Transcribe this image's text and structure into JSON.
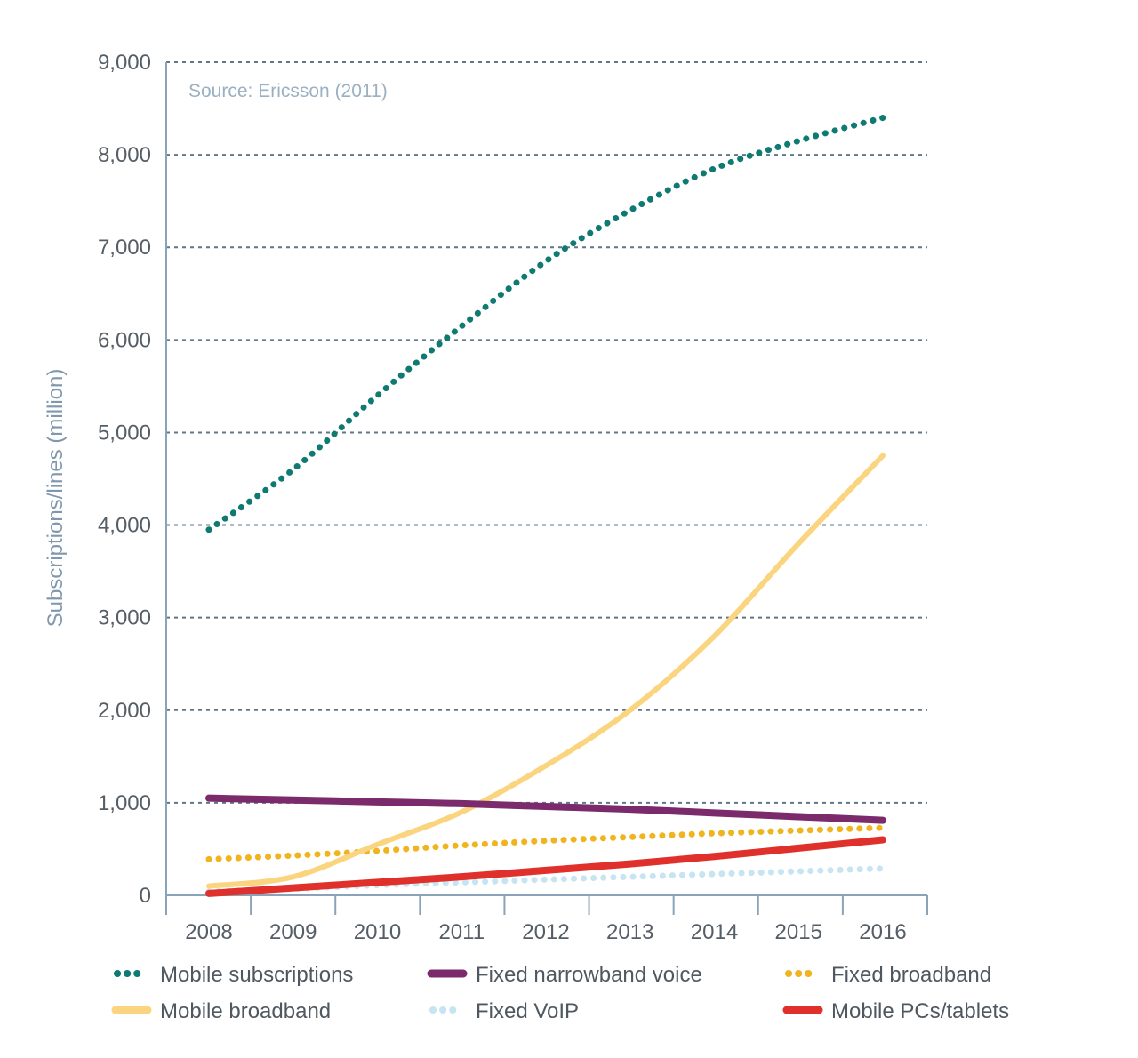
{
  "chart_data": {
    "type": "line",
    "source": "Source: Ericsson (2011)",
    "ylabel": "Subscriptions/lines (million)",
    "xlabel": "",
    "ylim": [
      0,
      9000
    ],
    "yticks": [
      0,
      1000,
      2000,
      3000,
      4000,
      5000,
      6000,
      7000,
      8000,
      9000
    ],
    "ytick_labels": [
      "0",
      "1,000",
      "2,000",
      "3,000",
      "4,000",
      "5,000",
      "6,000",
      "7,000",
      "8,000",
      "9,000"
    ],
    "categories": [
      "2008",
      "2009",
      "2010",
      "2011",
      "2012",
      "2013",
      "2014",
      "2015",
      "2016"
    ],
    "grid": "horizontal dashed",
    "legend_position": "bottom",
    "series": [
      {
        "name": "Mobile subscriptions",
        "color": "#0e7a72",
        "style": "dotted",
        "values": [
          3950,
          4600,
          5400,
          6150,
          6850,
          7400,
          7850,
          8150,
          8400
        ]
      },
      {
        "name": "Fixed narrowband voice",
        "color": "#7b2a6b",
        "style": "solid",
        "values": [
          1050,
          1030,
          1010,
          990,
          960,
          930,
          890,
          850,
          810
        ]
      },
      {
        "name": "Fixed broadband",
        "color": "#f0b41e",
        "style": "dotted",
        "values": [
          390,
          430,
          480,
          540,
          590,
          630,
          670,
          700,
          730
        ]
      },
      {
        "name": "Mobile broadband",
        "color": "#fbd47f",
        "style": "solid",
        "values": [
          100,
          200,
          550,
          900,
          1400,
          2000,
          2800,
          3800,
          4750
        ]
      },
      {
        "name": "Fixed VoIP",
        "color": "#c7e4f2",
        "style": "dotted",
        "values": [
          40,
          70,
          110,
          140,
          170,
          200,
          230,
          260,
          290
        ]
      },
      {
        "name": "Mobile PCs/tablets",
        "color": "#e0302b",
        "style": "solid",
        "values": [
          20,
          80,
          140,
          200,
          270,
          340,
          420,
          510,
          600
        ]
      }
    ]
  }
}
